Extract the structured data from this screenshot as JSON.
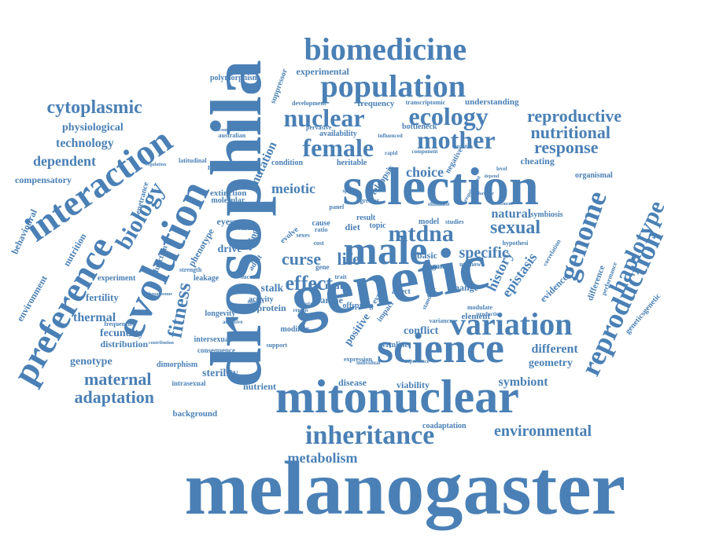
{
  "cloud": {
    "color": "#4a80b5",
    "words": [
      "melanogaster",
      "drosophila",
      "genetic",
      "selection",
      "mitonuclear",
      "science",
      "evolution",
      "preference",
      "interaction",
      "male",
      "biomedicine",
      "population",
      "variation",
      "nuclear",
      "ecology",
      "female",
      "mother",
      "reproduction",
      "genome",
      "inheritance",
      "environmental",
      "metabolism",
      "effect",
      "mtdna",
      "sexual",
      "life",
      "curse",
      "biology",
      "fitness",
      "maternal",
      "adaptation",
      "haplotype",
      "cytoplasmic",
      "reproductive",
      "nutritional",
      "response",
      "specific",
      "history",
      "epistasis",
      "meiotic",
      "choice",
      "natural",
      "different",
      "geometry",
      "symbiont",
      "thermal",
      "genotype",
      "fecundity",
      "distribution",
      "fertility",
      "experiment",
      "drive",
      "eyespan",
      "stalk",
      "nutrient",
      "disease",
      "viability",
      "conflict",
      "dependent",
      "compensatory",
      "technology",
      "physiological",
      "behavioural",
      "environment",
      "nutrition",
      "experimental",
      "antagonism",
      "polymorphism",
      "frequency",
      "understanding",
      "bottleneck",
      "cheating",
      "organismal",
      "symbiosis",
      "evidence",
      "difference",
      "performance",
      "geneticsgenetic",
      "coadaptation",
      "background",
      "sterility",
      "intersexual",
      "consequence",
      "longevity",
      "mutation",
      "suppressor",
      "teleopsis",
      "larvae",
      "protein",
      "mate",
      "basic",
      "elegans",
      "unknown",
      "hypothesi",
      "element",
      "modulate",
      "impact",
      "positive",
      "germline",
      "expression",
      "offspring",
      "intrasexual",
      "dimorphism",
      "extinction",
      "molecular",
      "multilevel",
      "latitudinal",
      "australian",
      "incompatibilities",
      "availability",
      "pervasive",
      "transcriptomic",
      "development",
      "heritable",
      "influenced",
      "condition",
      "negative",
      "phenotype",
      "leakage",
      "strength",
      "activity",
      "success",
      "function",
      "penetrance",
      "frequencies",
      "modifier",
      "support",
      "variance",
      "eyed",
      "diet",
      "topic",
      "result",
      "panel",
      "model",
      "change",
      "affect",
      "standard",
      "cause",
      "studies",
      "correlation",
      "adaptive",
      "evolve",
      "sexes",
      "ratio",
      "component",
      "subject",
      "neutral",
      "region",
      "variant",
      "aging",
      "adult",
      "gene",
      "trait",
      "cost",
      "greater",
      "eliminate",
      "experience",
      "individual",
      "production",
      "requirement",
      "contribution",
      "chromosome",
      "sperm",
      "rapid",
      "level",
      "depend",
      "speciation",
      "investment",
      "behaviour",
      "regulation"
    ]
  }
}
